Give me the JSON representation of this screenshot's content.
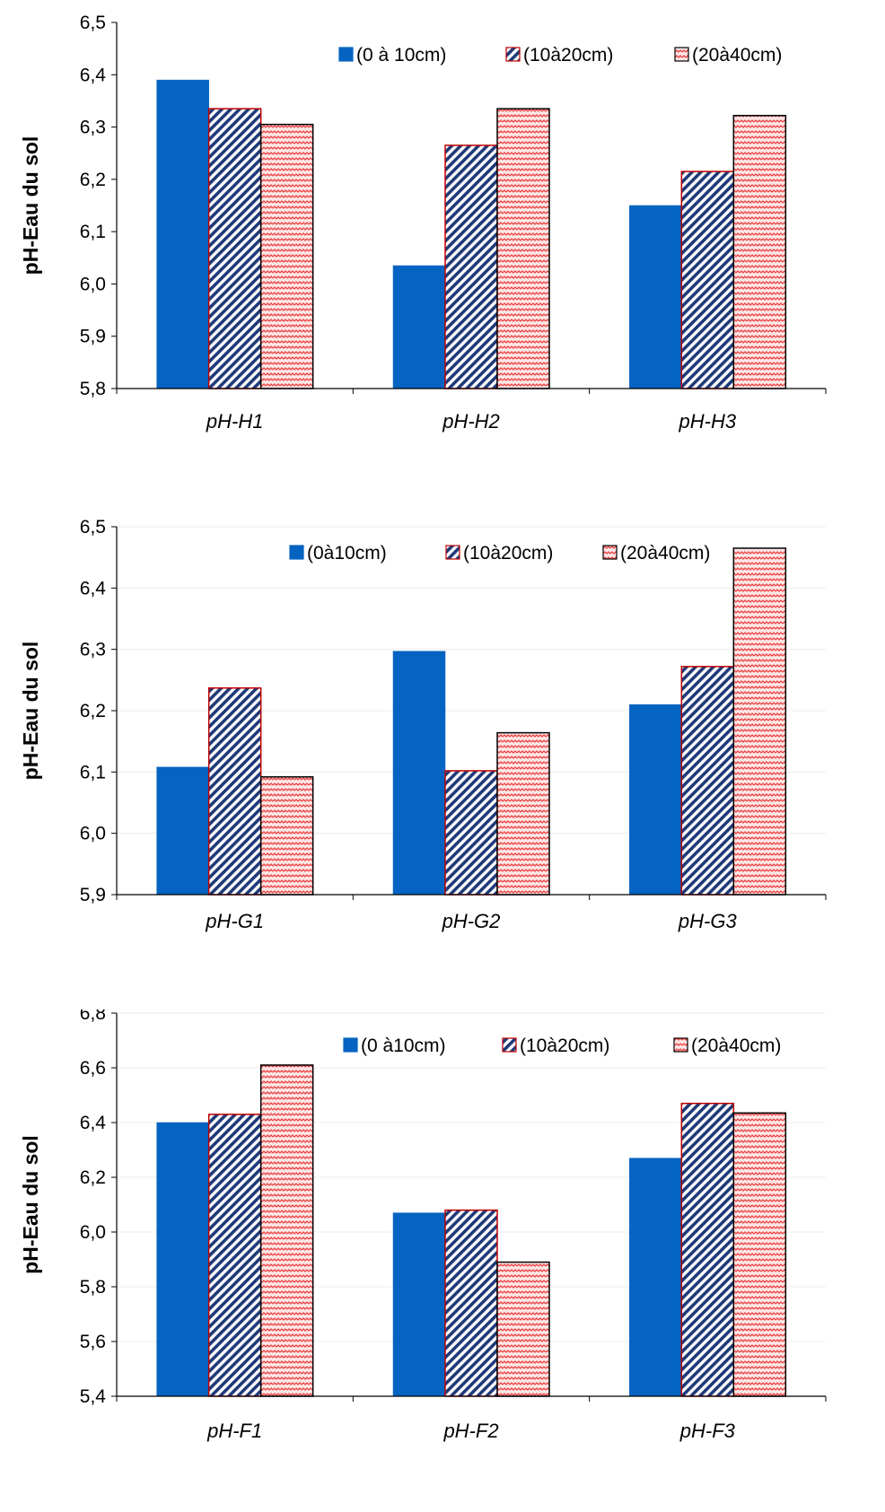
{
  "colors": {
    "series1_fill": "#0563c1",
    "series2_stripe": "#1f3a7a",
    "series2_border": "#c00000",
    "series3_zigzag": "#e8403f",
    "series3_bg": "#fde6e6",
    "axis": "#000000",
    "grid": "#ececec"
  },
  "chart_data": [
    {
      "type": "bar",
      "title": "",
      "xlabel": "",
      "ylabel": "pH-Eau du sol",
      "ylim": [
        5.8,
        6.5
      ],
      "yticks": [
        "5,8",
        "5,9",
        "6,0",
        "6,1",
        "6,2",
        "6,3",
        "6,4",
        "6,5"
      ],
      "ytick_values": [
        5.8,
        5.9,
        6.0,
        6.1,
        6.2,
        6.3,
        6.4,
        6.5
      ],
      "categories": [
        "pH-H1",
        "pH-H2",
        "pH-H3"
      ],
      "series": [
        {
          "name": "(0 à 10cm)",
          "values": [
            6.39,
            6.035,
            6.15
          ]
        },
        {
          "name": "(10à20cm)",
          "values": [
            6.335,
            6.265,
            6.215
          ]
        },
        {
          "name": "(20à40cm)",
          "values": [
            6.305,
            6.335,
            6.322
          ]
        }
      ],
      "legend": "top-right",
      "grid": false
    },
    {
      "type": "bar",
      "title": "",
      "xlabel": "",
      "ylabel": "pH-Eau du sol",
      "ylim": [
        5.9,
        6.5
      ],
      "yticks": [
        "5,9",
        "6,0",
        "6,1",
        "6,2",
        "6,3",
        "6,4",
        "6,5"
      ],
      "ytick_values": [
        5.9,
        6.0,
        6.1,
        6.2,
        6.3,
        6.4,
        6.5
      ],
      "categories": [
        "pH-G1",
        "pH-G2",
        "pH-G3"
      ],
      "series": [
        {
          "name": "(0à10cm)",
          "values": [
            6.108,
            6.297,
            6.21
          ]
        },
        {
          "name": "(10à20cm)",
          "values": [
            6.237,
            6.102,
            6.272
          ]
        },
        {
          "name": "(20à40cm)",
          "values": [
            6.092,
            6.164,
            6.465
          ]
        }
      ],
      "legend": "top",
      "grid": true
    },
    {
      "type": "bar",
      "title": "",
      "xlabel": "",
      "ylabel": "pH-Eau du sol",
      "ylim": [
        5.4,
        6.8
      ],
      "yticks": [
        "5,4",
        "5,6",
        "5,8",
        "6,0",
        "6,2",
        "6,4",
        "6,6",
        "6,8"
      ],
      "ytick_values": [
        5.4,
        5.6,
        5.8,
        6.0,
        6.2,
        6.4,
        6.6,
        6.8
      ],
      "categories": [
        "pH-F1",
        "pH-F2",
        "pH-F3"
      ],
      "series": [
        {
          "name": "(0 à10cm)",
          "values": [
            6.4,
            6.07,
            6.27
          ]
        },
        {
          "name": "(10à20cm)",
          "values": [
            6.43,
            6.08,
            6.47
          ]
        },
        {
          "name": "(20à40cm)",
          "values": [
            6.61,
            5.89,
            6.435
          ]
        }
      ],
      "legend": "top-right",
      "grid": true
    }
  ]
}
